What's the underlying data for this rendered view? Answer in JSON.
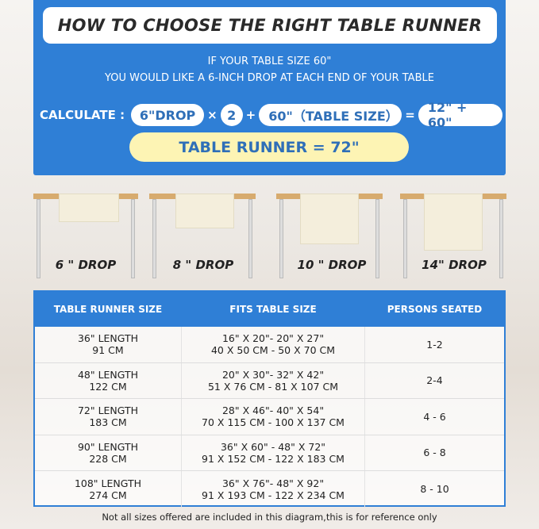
{
  "title": "HOW TO CHOOSE THE RIGHT TABLE RUNNER",
  "intro": [
    "IF YOUR TABLE SIZE 60\"",
    "YOU WOULD LIKE A 6-INCH DROP AT EACH END OF YOUR TABLE"
  ],
  "calc": {
    "label": "CALCULATE :",
    "drop": "6\"DROP",
    "times": "×",
    "two": "2",
    "plus": "+",
    "size": "60\"（TABLE SIZE）",
    "equals": "=",
    "sum": "12\" + 60\"",
    "result": "TABLE RUNNER = 72\""
  },
  "drops": [
    "6 \" DROP",
    "8 \" DROP",
    "10 \" DROP",
    "14\" DROP"
  ],
  "table": {
    "headers": [
      "TABLE RUNNER SIZE",
      "FITS TABLE SIZE",
      "PERSONS SEATED"
    ],
    "rows": [
      {
        "len": "36\" LENGTH",
        "cm": "91 CM",
        "fit_in": "16\" X 20\"- 20\" X 27\"",
        "fit_cm": "40 X 50 CM - 50 X 70 CM",
        "persons": "1-2"
      },
      {
        "len": "48\" LENGTH",
        "cm": "122 CM",
        "fit_in": "20\" X 30\"- 32\" X 42\"",
        "fit_cm": "51 X 76 CM - 81 X 107 CM",
        "persons": "2-4"
      },
      {
        "len": "72\" LENGTH",
        "cm": "183 CM",
        "fit_in": "28\" X 46\"- 40\" X 54\"",
        "fit_cm": "70 X 115 CM - 100 X 137 CM",
        "persons": "4 - 6"
      },
      {
        "len": "90\" LENGTH",
        "cm": "228 CM",
        "fit_in": "36\" X 60\" - 48\" X 72\"",
        "fit_cm": "91 X 152 CM - 122 X 183 CM",
        "persons": "6 - 8"
      },
      {
        "len": "108\" LENGTH",
        "cm": "274 CM",
        "fit_in": "36\" X 76\"- 48\" X 92\"",
        "fit_cm": "91 X 193 CM - 122 X 234 CM",
        "persons": "8 - 10"
      }
    ]
  },
  "footnote": "Not all sizes offered are included in this diagram,this is for reference only"
}
